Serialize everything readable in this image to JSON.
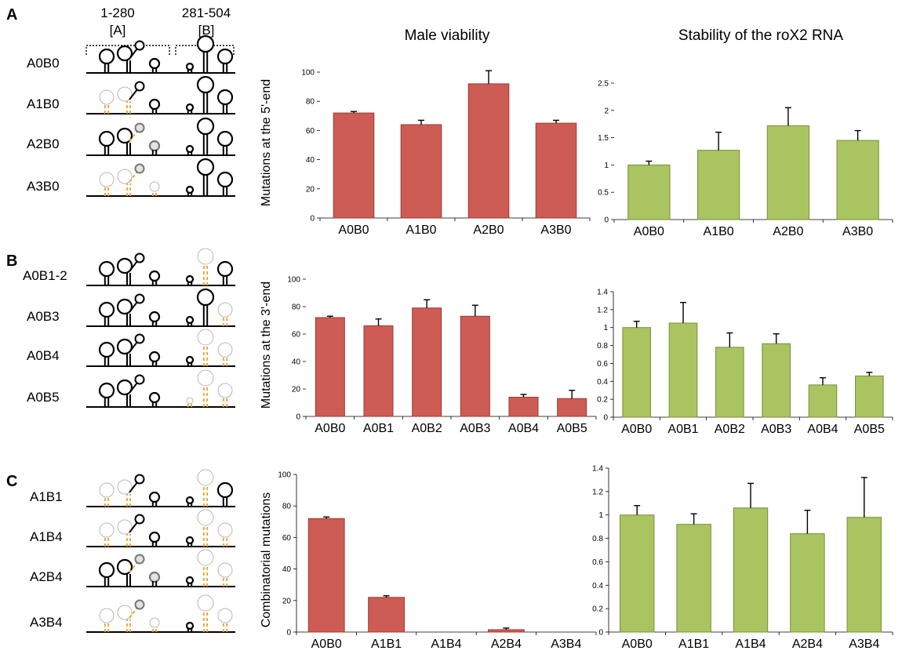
{
  "panels": [
    {
      "letter": "A",
      "rows": [
        "A0B0",
        "A1B0",
        "A2B0",
        "A3B0"
      ]
    },
    {
      "letter": "B",
      "rows": [
        "A0B1-2",
        "A0B3",
        "A0B4",
        "A0B5"
      ]
    },
    {
      "letter": "C",
      "rows": [
        "A1B1",
        "A1B4",
        "A2B4",
        "A3B4"
      ]
    }
  ],
  "region_headers": [
    {
      "range": "1-280",
      "name": "[A]"
    },
    {
      "range": "281-504",
      "name": "[B]"
    }
  ],
  "column_titles": [
    "Male viability",
    "Stability of the roX2 RNA"
  ],
  "y_labels": [
    "Mutations at the 5'-end",
    "Mutations at the 3'-end",
    "Combinatorial mutations"
  ],
  "colors": {
    "viability": "#cd5c55",
    "viability_stroke": "#9e3a33",
    "stability": "#a9c460",
    "stability_stroke": "#7a8f3a",
    "mut": "#f0a030",
    "ghost": "#b8b8b8"
  },
  "chart_data": [
    {
      "type": "bar",
      "title": "Male viability",
      "ylabel": "Mutations at the 5'-end",
      "categories": [
        "A0B0",
        "A1B0",
        "A2B0",
        "A3B0"
      ],
      "values": [
        72,
        64,
        92,
        65
      ],
      "errors": [
        1,
        3,
        9,
        2
      ],
      "ylim": [
        0,
        100
      ],
      "ticks": [
        "0",
        "20",
        "40",
        "60",
        "80",
        "100"
      ],
      "color": "viability"
    },
    {
      "type": "bar",
      "title": "Stability of the roX2 RNA",
      "categories": [
        "A0B0",
        "A1B0",
        "A2B0",
        "A3B0"
      ],
      "values": [
        1.0,
        1.27,
        1.72,
        1.45
      ],
      "errors": [
        0.07,
        0.33,
        0.33,
        0.18
      ],
      "ylim": [
        0,
        2.5
      ],
      "ticks": [
        "0",
        "0.5",
        "1",
        "1.5",
        "2",
        "2.5"
      ],
      "color": "stability"
    },
    {
      "type": "bar",
      "title": "Male viability",
      "ylabel": "Mutations at the 3'-end",
      "categories": [
        "A0B0",
        "A0B1",
        "A0B2",
        "A0B3",
        "A0B4",
        "A0B5"
      ],
      "values": [
        72,
        66,
        79,
        73,
        14,
        13
      ],
      "errors": [
        1,
        5,
        6,
        8,
        2,
        6
      ],
      "ylim": [
        0,
        100
      ],
      "ticks": [
        "0",
        "20",
        "40",
        "60",
        "80",
        "100"
      ],
      "color": "viability"
    },
    {
      "type": "bar",
      "title": "Stability of the roX2 RNA",
      "categories": [
        "A0B0",
        "A0B1",
        "A0B2",
        "A0B3",
        "A0B4",
        "A0B5"
      ],
      "values": [
        1.0,
        1.05,
        0.78,
        0.82,
        0.36,
        0.46
      ],
      "errors": [
        0.07,
        0.23,
        0.16,
        0.11,
        0.08,
        0.04
      ],
      "ylim": [
        0,
        1.4
      ],
      "ticks": [
        "0",
        "0.2",
        "0.4",
        "0.6",
        "0.8",
        "1",
        "1.2",
        "1.4"
      ],
      "color": "stability"
    },
    {
      "type": "bar",
      "title": "Male viability",
      "ylabel": "Combinatorial mutations",
      "categories": [
        "A0B0",
        "A1B1",
        "A1B4",
        "A2B4",
        "A3B4"
      ],
      "values": [
        72,
        22,
        0,
        1.5,
        0
      ],
      "errors": [
        1,
        1,
        0,
        1,
        0
      ],
      "ylim": [
        0,
        100
      ],
      "ticks": [
        "0",
        "20",
        "40",
        "60",
        "80",
        "100"
      ],
      "color": "viability"
    },
    {
      "type": "bar",
      "title": "Stability of the roX2 RNA",
      "categories": [
        "A0B0",
        "A1B1",
        "A1B4",
        "A2B4",
        "A3B4"
      ],
      "values": [
        1.0,
        0.92,
        1.06,
        0.84,
        0.98
      ],
      "errors": [
        0.08,
        0.09,
        0.21,
        0.2,
        0.34
      ],
      "ylim": [
        0,
        1.4
      ],
      "ticks": [
        "0",
        "0.2",
        "0.4",
        "0.6",
        "0.8",
        "1",
        "1.2",
        "1.4"
      ],
      "color": "stability"
    }
  ]
}
